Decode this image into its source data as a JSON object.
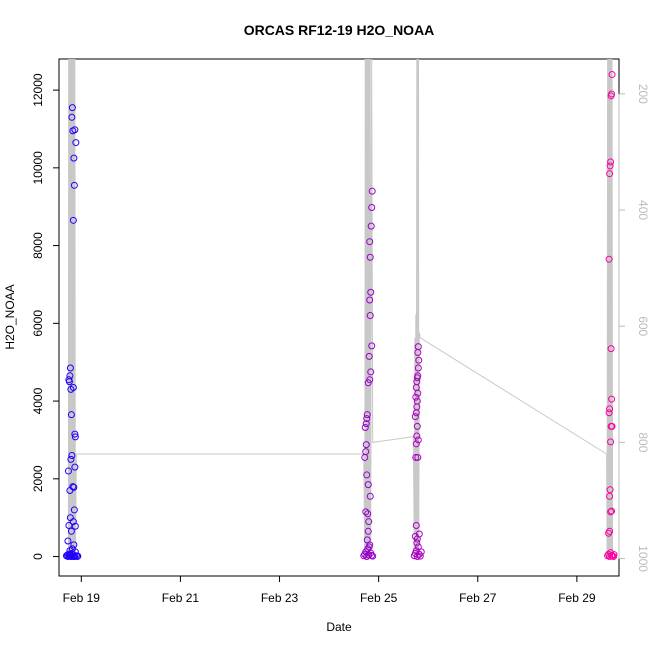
{
  "chart_data": {
    "type": "scatter",
    "title": "ORCAS RF12-19 H2O_NOAA",
    "xlabel": "Date",
    "ylabel": "H2O_NOAA",
    "xlim": [
      18.55,
      29.85
    ],
    "ylim": [
      -500,
      12800
    ],
    "x_ticks": [
      {
        "value": 19,
        "label": "Feb 19"
      },
      {
        "value": 21,
        "label": "Feb 21"
      },
      {
        "value": 23,
        "label": "Feb 23"
      },
      {
        "value": 25,
        "label": "Feb 25"
      },
      {
        "value": 27,
        "label": "Feb 27"
      },
      {
        "value": 29,
        "label": "Feb 29"
      }
    ],
    "y_ticks": [
      0,
      2000,
      4000,
      6000,
      8000,
      10000,
      12000
    ],
    "y2_axis": {
      "label": "",
      "inverted": true,
      "ylim": [
        1030,
        140
      ],
      "ticks": [
        200,
        400,
        600,
        800,
        1000
      ],
      "color": "#bbbbbb"
    },
    "color_scale": {
      "start": "#1a00ff",
      "end": "#ff00a0"
    },
    "series": [
      {
        "points": [
          {
            "x": 18.7,
            "y": 20
          },
          {
            "x": 18.72,
            "y": 40
          },
          {
            "x": 18.73,
            "y": 0
          },
          {
            "x": 18.75,
            "y": 60
          },
          {
            "x": 18.76,
            "y": 10
          },
          {
            "x": 18.77,
            "y": 150
          },
          {
            "x": 18.78,
            "y": 30
          },
          {
            "x": 18.79,
            "y": 0
          },
          {
            "x": 18.8,
            "y": 80
          },
          {
            "x": 18.81,
            "y": 5
          },
          {
            "x": 18.82,
            "y": 200
          },
          {
            "x": 18.83,
            "y": 50
          },
          {
            "x": 18.84,
            "y": 0
          },
          {
            "x": 18.85,
            "y": 300
          },
          {
            "x": 18.86,
            "y": 15
          },
          {
            "x": 18.87,
            "y": 0
          },
          {
            "x": 18.88,
            "y": 120
          },
          {
            "x": 18.9,
            "y": 20
          },
          {
            "x": 18.92,
            "y": 0
          },
          {
            "x": 18.93,
            "y": 10
          },
          {
            "x": 18.73,
            "y": 400
          },
          {
            "x": 18.75,
            "y": 800
          },
          {
            "x": 18.78,
            "y": 1000
          },
          {
            "x": 18.8,
            "y": 650
          },
          {
            "x": 18.84,
            "y": 900
          },
          {
            "x": 18.86,
            "y": 1200
          },
          {
            "x": 18.88,
            "y": 780
          },
          {
            "x": 18.74,
            "y": 2200
          },
          {
            "x": 18.77,
            "y": 1700
          },
          {
            "x": 18.79,
            "y": 2500
          },
          {
            "x": 18.81,
            "y": 2600
          },
          {
            "x": 18.83,
            "y": 1800
          },
          {
            "x": 18.85,
            "y": 1780
          },
          {
            "x": 18.87,
            "y": 2300
          },
          {
            "x": 18.75,
            "y": 4550
          },
          {
            "x": 18.76,
            "y": 4500
          },
          {
            "x": 18.77,
            "y": 4650
          },
          {
            "x": 18.78,
            "y": 4850
          },
          {
            "x": 18.79,
            "y": 4300
          },
          {
            "x": 18.8,
            "y": 3650
          },
          {
            "x": 18.87,
            "y": 3150
          },
          {
            "x": 18.88,
            "y": 3080
          },
          {
            "x": 18.84,
            "y": 4350
          },
          {
            "x": 18.82,
            "y": 11550
          },
          {
            "x": 18.81,
            "y": 11300
          },
          {
            "x": 18.83,
            "y": 10950
          },
          {
            "x": 18.87,
            "y": 10980
          },
          {
            "x": 18.89,
            "y": 10650
          },
          {
            "x": 18.85,
            "y": 10250
          },
          {
            "x": 18.86,
            "y": 9550
          },
          {
            "x": 18.84,
            "y": 8650
          },
          {
            "x": 24.7,
            "y": 20
          },
          {
            "x": 24.72,
            "y": 60
          },
          {
            "x": 24.74,
            "y": 120
          },
          {
            "x": 24.76,
            "y": 0
          },
          {
            "x": 24.78,
            "y": 200
          },
          {
            "x": 24.8,
            "y": 40
          },
          {
            "x": 24.82,
            "y": 300
          },
          {
            "x": 24.84,
            "y": 90
          },
          {
            "x": 24.86,
            "y": 30
          },
          {
            "x": 24.88,
            "y": 10
          },
          {
            "x": 24.74,
            "y": 1150
          },
          {
            "x": 24.78,
            "y": 1100
          },
          {
            "x": 24.8,
            "y": 900
          },
          {
            "x": 24.79,
            "y": 650
          },
          {
            "x": 24.81,
            "y": 250
          },
          {
            "x": 24.77,
            "y": 430
          },
          {
            "x": 24.79,
            "y": 1850
          },
          {
            "x": 24.83,
            "y": 1550
          },
          {
            "x": 24.76,
            "y": 2100
          },
          {
            "x": 24.72,
            "y": 2550
          },
          {
            "x": 24.74,
            "y": 2700
          },
          {
            "x": 24.75,
            "y": 2880
          },
          {
            "x": 24.73,
            "y": 3320
          },
          {
            "x": 24.75,
            "y": 3420
          },
          {
            "x": 24.76,
            "y": 3550
          },
          {
            "x": 24.77,
            "y": 3650
          },
          {
            "x": 24.79,
            "y": 4470
          },
          {
            "x": 24.82,
            "y": 4550
          },
          {
            "x": 24.84,
            "y": 4750
          },
          {
            "x": 24.81,
            "y": 5150
          },
          {
            "x": 24.86,
            "y": 5420
          },
          {
            "x": 24.83,
            "y": 6200
          },
          {
            "x": 24.82,
            "y": 6600
          },
          {
            "x": 24.84,
            "y": 6800
          },
          {
            "x": 24.83,
            "y": 7700
          },
          {
            "x": 24.82,
            "y": 8100
          },
          {
            "x": 24.85,
            "y": 8500
          },
          {
            "x": 24.86,
            "y": 8980
          },
          {
            "x": 24.87,
            "y": 9400
          },
          {
            "x": 25.72,
            "y": 20
          },
          {
            "x": 25.74,
            "y": 80
          },
          {
            "x": 25.76,
            "y": 150
          },
          {
            "x": 25.78,
            "y": 0
          },
          {
            "x": 25.8,
            "y": 250
          },
          {
            "x": 25.82,
            "y": 60
          },
          {
            "x": 25.84,
            "y": 10
          },
          {
            "x": 25.86,
            "y": 120
          },
          {
            "x": 25.74,
            "y": 520
          },
          {
            "x": 25.76,
            "y": 800
          },
          {
            "x": 25.78,
            "y": 450
          },
          {
            "x": 25.82,
            "y": 580
          },
          {
            "x": 25.77,
            "y": 350
          },
          {
            "x": 25.75,
            "y": 2550
          },
          {
            "x": 25.79,
            "y": 2550
          },
          {
            "x": 25.76,
            "y": 2900
          },
          {
            "x": 25.77,
            "y": 3100
          },
          {
            "x": 25.8,
            "y": 3000
          },
          {
            "x": 25.78,
            "y": 3350
          },
          {
            "x": 25.74,
            "y": 3600
          },
          {
            "x": 25.76,
            "y": 3700
          },
          {
            "x": 25.77,
            "y": 3850
          },
          {
            "x": 25.78,
            "y": 4000
          },
          {
            "x": 25.75,
            "y": 4100
          },
          {
            "x": 25.79,
            "y": 4200
          },
          {
            "x": 25.76,
            "y": 4350
          },
          {
            "x": 25.77,
            "y": 4500
          },
          {
            "x": 25.78,
            "y": 4600
          },
          {
            "x": 25.79,
            "y": 4650
          },
          {
            "x": 25.8,
            "y": 4850
          },
          {
            "x": 25.81,
            "y": 5050
          },
          {
            "x": 25.79,
            "y": 5250
          },
          {
            "x": 25.8,
            "y": 5400
          },
          {
            "x": 29.62,
            "y": 20
          },
          {
            "x": 29.64,
            "y": 60
          },
          {
            "x": 29.66,
            "y": 0
          },
          {
            "x": 29.68,
            "y": 100
          },
          {
            "x": 29.7,
            "y": 30
          },
          {
            "x": 29.72,
            "y": 10
          },
          {
            "x": 29.74,
            "y": 0
          },
          {
            "x": 29.75,
            "y": 50
          },
          {
            "x": 29.64,
            "y": 600
          },
          {
            "x": 29.66,
            "y": 650
          },
          {
            "x": 29.68,
            "y": 1150
          },
          {
            "x": 29.7,
            "y": 1170
          },
          {
            "x": 29.66,
            "y": 1550
          },
          {
            "x": 29.67,
            "y": 1720
          },
          {
            "x": 29.65,
            "y": 3700
          },
          {
            "x": 29.66,
            "y": 3800
          },
          {
            "x": 29.68,
            "y": 2950
          },
          {
            "x": 29.69,
            "y": 3350
          },
          {
            "x": 29.71,
            "y": 3350
          },
          {
            "x": 29.7,
            "y": 4050
          },
          {
            "x": 29.69,
            "y": 5350
          },
          {
            "x": 29.65,
            "y": 7650
          },
          {
            "x": 29.66,
            "y": 9850
          },
          {
            "x": 29.67,
            "y": 10050
          },
          {
            "x": 29.68,
            "y": 10150
          },
          {
            "x": 29.69,
            "y": 11850
          },
          {
            "x": 29.7,
            "y": 11900
          },
          {
            "x": 29.71,
            "y": 12400
          }
        ]
      },
      {
        "points": [
          {
            "x": 18.74,
            "y": 1000
          },
          {
            "x": 18.745,
            "y": 140
          },
          {
            "x": 18.75,
            "y": 1000
          },
          {
            "x": 18.755,
            "y": 140
          },
          {
            "x": 18.76,
            "y": 1000
          },
          {
            "x": 18.765,
            "y": 140
          },
          {
            "x": 18.77,
            "y": 820
          },
          {
            "x": 18.775,
            "y": 140
          },
          {
            "x": 18.78,
            "y": 1000
          },
          {
            "x": 18.785,
            "y": 140
          },
          {
            "x": 18.79,
            "y": 1000
          },
          {
            "x": 18.795,
            "y": 140
          },
          {
            "x": 18.8,
            "y": 1000
          },
          {
            "x": 18.805,
            "y": 140
          },
          {
            "x": 18.81,
            "y": 1000
          },
          {
            "x": 18.815,
            "y": 140
          },
          {
            "x": 18.82,
            "y": 1000
          },
          {
            "x": 18.825,
            "y": 140
          },
          {
            "x": 18.83,
            "y": 1000
          },
          {
            "x": 18.835,
            "y": 140
          },
          {
            "x": 18.84,
            "y": 1000
          },
          {
            "x": 18.85,
            "y": 140
          },
          {
            "x": 18.86,
            "y": 1000
          },
          {
            "x": 18.87,
            "y": 140
          },
          {
            "x": 18.88,
            "y": 1000
          },
          {
            "x": 18.9,
            "y": 820
          },
          {
            "x": 18.93,
            "y": 820
          },
          {
            "x": 24.7,
            "y": 820
          },
          {
            "x": 24.72,
            "y": 1000
          },
          {
            "x": 24.73,
            "y": 140
          },
          {
            "x": 24.74,
            "y": 1000
          },
          {
            "x": 24.745,
            "y": 140
          },
          {
            "x": 24.75,
            "y": 1000
          },
          {
            "x": 24.755,
            "y": 140
          },
          {
            "x": 24.76,
            "y": 1000
          },
          {
            "x": 24.765,
            "y": 140
          },
          {
            "x": 24.77,
            "y": 1000
          },
          {
            "x": 24.775,
            "y": 140
          },
          {
            "x": 24.78,
            "y": 1000
          },
          {
            "x": 24.785,
            "y": 140
          },
          {
            "x": 24.79,
            "y": 1000
          },
          {
            "x": 24.795,
            "y": 140
          },
          {
            "x": 24.8,
            "y": 1000
          },
          {
            "x": 24.805,
            "y": 140
          },
          {
            "x": 24.81,
            "y": 1000
          },
          {
            "x": 24.815,
            "y": 140
          },
          {
            "x": 24.82,
            "y": 1000
          },
          {
            "x": 24.83,
            "y": 140
          },
          {
            "x": 24.84,
            "y": 1000
          },
          {
            "x": 24.86,
            "y": 140
          },
          {
            "x": 24.88,
            "y": 800
          },
          {
            "x": 25.7,
            "y": 790
          },
          {
            "x": 25.72,
            "y": 1000
          },
          {
            "x": 25.73,
            "y": 620
          },
          {
            "x": 25.74,
            "y": 1000
          },
          {
            "x": 25.75,
            "y": 580
          },
          {
            "x": 25.76,
            "y": 1000
          },
          {
            "x": 25.77,
            "y": 140
          },
          {
            "x": 25.78,
            "y": 1000
          },
          {
            "x": 25.785,
            "y": 140
          },
          {
            "x": 25.79,
            "y": 1000
          },
          {
            "x": 25.795,
            "y": 140
          },
          {
            "x": 25.8,
            "y": 1000
          },
          {
            "x": 25.805,
            "y": 140
          },
          {
            "x": 25.81,
            "y": 1000
          },
          {
            "x": 25.82,
            "y": 610
          },
          {
            "x": 25.84,
            "y": 620
          },
          {
            "x": 29.6,
            "y": 820
          },
          {
            "x": 29.61,
            "y": 1000
          },
          {
            "x": 29.62,
            "y": 140
          },
          {
            "x": 29.63,
            "y": 1000
          },
          {
            "x": 29.635,
            "y": 140
          },
          {
            "x": 29.64,
            "y": 1000
          },
          {
            "x": 29.645,
            "y": 140
          },
          {
            "x": 29.65,
            "y": 1000
          },
          {
            "x": 29.655,
            "y": 140
          },
          {
            "x": 29.66,
            "y": 1000
          },
          {
            "x": 29.665,
            "y": 140
          },
          {
            "x": 29.67,
            "y": 1000
          },
          {
            "x": 29.675,
            "y": 140
          },
          {
            "x": 29.68,
            "y": 1000
          },
          {
            "x": 29.685,
            "y": 140
          },
          {
            "x": 29.69,
            "y": 1000
          },
          {
            "x": 29.695,
            "y": 140
          },
          {
            "x": 29.7,
            "y": 1000
          },
          {
            "x": 29.71,
            "y": 140
          },
          {
            "x": 29.72,
            "y": 1000
          },
          {
            "x": 29.74,
            "y": 1000
          }
        ]
      }
    ],
    "line_color": "#c8c8c8",
    "grid": false,
    "legend": "none"
  }
}
